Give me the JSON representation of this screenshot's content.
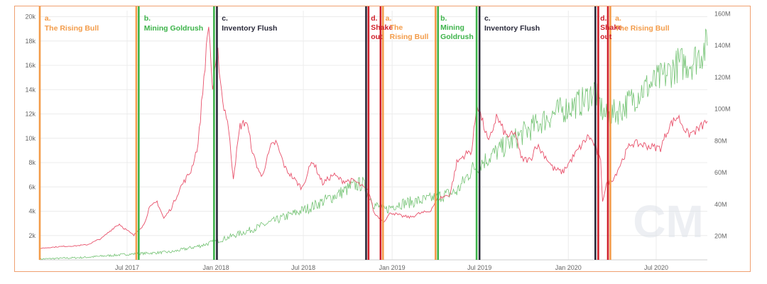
{
  "chart_data": {
    "type": "line",
    "x_range": [
      "2017-01-01",
      "2020-10-15"
    ],
    "y_left": {
      "range": [
        0,
        20500
      ],
      "ticks": [
        2000,
        4000,
        6000,
        8000,
        10000,
        12000,
        14000,
        16000,
        18000,
        20000
      ],
      "tick_labels": [
        "2k",
        "4k",
        "6k",
        "8k",
        "10k",
        "12k",
        "14k",
        "16k",
        "18k",
        "20k"
      ]
    },
    "y_right": {
      "range": [
        5000000,
        162000000
      ],
      "ticks": [
        20000000,
        40000000,
        60000000,
        80000000,
        100000000,
        120000000,
        140000000,
        160000000
      ],
      "tick_labels": [
        "20M",
        "40M",
        "60M",
        "80M",
        "100M",
        "120M",
        "140M",
        "160M"
      ]
    },
    "x_ticks": [
      {
        "date": "2017-07-01",
        "label": "Jul 2017"
      },
      {
        "date": "2018-01-01",
        "label": "Jan 2018"
      },
      {
        "date": "2018-07-01",
        "label": "Jul 2018"
      },
      {
        "date": "2019-01-01",
        "label": "Jan 2019"
      },
      {
        "date": "2019-07-01",
        "label": "Jul 2019"
      },
      {
        "date": "2020-01-01",
        "label": "Jan 2020"
      },
      {
        "date": "2020-07-01",
        "label": "Jul 2020"
      }
    ],
    "grid": true,
    "series": [
      {
        "axis": "left",
        "color": "#e8506a",
        "points": [
          [
            "2017-01-01",
            950
          ],
          [
            "2017-02-15",
            1100
          ],
          [
            "2017-03-15",
            1150
          ],
          [
            "2017-04-10",
            1250
          ],
          [
            "2017-05-10",
            1800
          ],
          [
            "2017-06-05",
            2700
          ],
          [
            "2017-06-15",
            2950
          ],
          [
            "2017-06-25",
            2600
          ],
          [
            "2017-07-15",
            2000
          ],
          [
            "2017-07-25",
            2500
          ],
          [
            "2017-08-05",
            2900
          ],
          [
            "2017-08-15",
            4200
          ],
          [
            "2017-09-01",
            4800
          ],
          [
            "2017-09-15",
            3400
          ],
          [
            "2017-10-01",
            4300
          ],
          [
            "2017-10-20",
            6000
          ],
          [
            "2017-11-10",
            7300
          ],
          [
            "2017-11-25",
            9500
          ],
          [
            "2017-12-07",
            15000
          ],
          [
            "2017-12-17",
            19500
          ],
          [
            "2017-12-25",
            14000
          ],
          [
            "2018-01-05",
            17000
          ],
          [
            "2018-01-15",
            13000
          ],
          [
            "2018-01-25",
            11500
          ],
          [
            "2018-02-06",
            6800
          ],
          [
            "2018-02-20",
            11000
          ],
          [
            "2018-03-05",
            11400
          ],
          [
            "2018-03-20",
            8500
          ],
          [
            "2018-04-05",
            6800
          ],
          [
            "2018-04-25",
            9300
          ],
          [
            "2018-05-05",
            9700
          ],
          [
            "2018-05-25",
            7500
          ],
          [
            "2018-06-15",
            6500
          ],
          [
            "2018-06-28",
            5900
          ],
          [
            "2018-07-20",
            8200
          ],
          [
            "2018-08-10",
            6300
          ],
          [
            "2018-09-01",
            7000
          ],
          [
            "2018-09-20",
            6500
          ],
          [
            "2018-10-15",
            6500
          ],
          [
            "2018-11-14",
            5600
          ],
          [
            "2018-11-25",
            3800
          ],
          [
            "2018-12-15",
            3200
          ],
          [
            "2018-12-30",
            3900
          ],
          [
            "2019-01-20",
            3600
          ],
          [
            "2019-02-08",
            3500
          ],
          [
            "2019-02-25",
            3800
          ],
          [
            "2019-03-20",
            4000
          ],
          [
            "2019-04-05",
            5000
          ],
          [
            "2019-05-01",
            5400
          ],
          [
            "2019-05-15",
            8000
          ],
          [
            "2019-05-30",
            8600
          ],
          [
            "2019-06-15",
            9000
          ],
          [
            "2019-06-26",
            12900
          ],
          [
            "2019-07-10",
            11000
          ],
          [
            "2019-07-20",
            9600
          ],
          [
            "2019-08-05",
            11800
          ],
          [
            "2019-08-25",
            10200
          ],
          [
            "2019-09-15",
            10300
          ],
          [
            "2019-09-25",
            8300
          ],
          [
            "2019-10-15",
            8200
          ],
          [
            "2019-10-26",
            9500
          ],
          [
            "2019-11-15",
            8500
          ],
          [
            "2019-12-01",
            7500
          ],
          [
            "2019-12-20",
            7200
          ],
          [
            "2020-01-15",
            8700
          ],
          [
            "2020-02-12",
            10200
          ],
          [
            "2020-02-25",
            9400
          ],
          [
            "2020-03-08",
            8000
          ],
          [
            "2020-03-12",
            4900
          ],
          [
            "2020-03-20",
            6200
          ],
          [
            "2020-04-05",
            6800
          ],
          [
            "2020-04-29",
            8800
          ],
          [
            "2020-05-10",
            9600
          ],
          [
            "2020-06-01",
            9500
          ],
          [
            "2020-06-20",
            9300
          ],
          [
            "2020-07-10",
            9200
          ],
          [
            "2020-07-28",
            11000
          ],
          [
            "2020-08-15",
            11800
          ],
          [
            "2020-09-05",
            10300
          ],
          [
            "2020-09-25",
            10700
          ],
          [
            "2020-10-15",
            11400
          ]
        ]
      },
      {
        "axis": "right",
        "color": "#5cb85c",
        "points": [
          [
            "2017-01-01",
            5500000
          ],
          [
            "2017-04-01",
            6500000
          ],
          [
            "2017-07-01",
            8500000
          ],
          [
            "2017-10-01",
            10000000
          ],
          [
            "2017-12-01",
            14000000
          ],
          [
            "2018-01-15",
            18000000
          ],
          [
            "2018-03-15",
            24000000
          ],
          [
            "2018-05-15",
            31000000
          ],
          [
            "2018-07-15",
            38000000
          ],
          [
            "2018-09-15",
            47000000
          ],
          [
            "2018-10-15",
            52000000
          ],
          [
            "2018-11-01",
            53000000
          ],
          [
            "2018-11-25",
            40000000
          ],
          [
            "2018-12-15",
            36000000
          ],
          [
            "2019-01-10",
            40000000
          ],
          [
            "2019-03-15",
            43000000
          ],
          [
            "2019-05-15",
            48000000
          ],
          [
            "2019-06-15",
            62000000
          ],
          [
            "2019-08-15",
            75000000
          ],
          [
            "2019-10-01",
            85000000
          ],
          [
            "2019-12-01",
            97000000
          ],
          [
            "2020-02-01",
            105000000
          ],
          [
            "2020-02-25",
            112000000
          ],
          [
            "2020-03-10",
            100000000
          ],
          [
            "2020-03-20",
            95000000
          ],
          [
            "2020-04-20",
            100000000
          ],
          [
            "2020-06-01",
            112000000
          ],
          [
            "2020-07-15",
            120000000
          ],
          [
            "2020-08-15",
            128000000
          ],
          [
            "2020-09-15",
            130000000
          ],
          [
            "2020-10-15",
            140000000
          ]
        ]
      }
    ],
    "markers": [
      {
        "date": "2017-01-01",
        "color": "#f39c4a"
      },
      {
        "date": "2017-07-20",
        "color": "#f39c4a"
      },
      {
        "date": "2017-07-25",
        "color": "#3db34a"
      },
      {
        "date": "2017-12-28",
        "color": "#3db34a"
      },
      {
        "date": "2018-01-03",
        "color": "#2a2a3a"
      },
      {
        "date": "2018-11-08",
        "color": "#2a2a3a"
      },
      {
        "date": "2018-11-13",
        "color": "#d0202a"
      },
      {
        "date": "2018-12-08",
        "color": "#d0202a"
      },
      {
        "date": "2018-12-13",
        "color": "#f39c4a"
      },
      {
        "date": "2019-04-01",
        "color": "#f39c4a"
      },
      {
        "date": "2019-04-06",
        "color": "#3db34a"
      },
      {
        "date": "2019-06-25",
        "color": "#3db34a"
      },
      {
        "date": "2019-07-01",
        "color": "#2a2a3a"
      },
      {
        "date": "2020-02-26",
        "color": "#2a2a3a"
      },
      {
        "date": "2020-03-03",
        "color": "#d0202a"
      },
      {
        "date": "2020-03-23",
        "color": "#d0202a"
      },
      {
        "date": "2020-03-28",
        "color": "#f39c4a"
      }
    ],
    "phase_labels": [
      {
        "date": "2017-01-08",
        "prefix": "a.",
        "text": "The Rising Bull",
        "color": "#f39c4a"
      },
      {
        "date": "2017-08-02",
        "prefix": "b.",
        "text": "Mining Goldrush",
        "color": "#3db34a"
      },
      {
        "date": "2018-01-10",
        "prefix": "c.",
        "text": "Inventory Flush",
        "color": "#2a2a3a"
      },
      {
        "date": "2018-11-15",
        "prefix": "d.",
        "text": "Shake out",
        "color": "#d0202a"
      },
      {
        "date": "2018-12-15",
        "prefix": "a.",
        "text": "The Rising Bull",
        "color": "#f39c4a"
      },
      {
        "date": "2019-04-08",
        "prefix": "b.",
        "text": "Mining Goldrush",
        "color": "#3db34a"
      },
      {
        "date": "2019-07-08",
        "prefix": "c.",
        "text": "Inventory Flush",
        "color": "#2a2a3a"
      },
      {
        "date": "2020-03-04",
        "prefix": "d.",
        "text": "Shake out",
        "color": "#d0202a"
      },
      {
        "date": "2020-04-04",
        "prefix": "a.",
        "text": "The Rising Bull",
        "color": "#f39c4a"
      }
    ],
    "watermark": "CM"
  }
}
